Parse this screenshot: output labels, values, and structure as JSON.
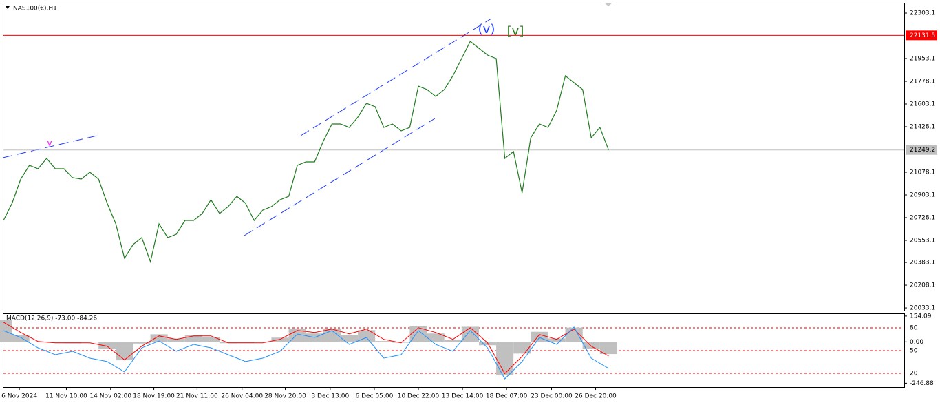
{
  "chart_data": [
    {
      "type": "line",
      "title": "NAS100(€),H1",
      "color": "#1f7a1f",
      "values": [
        20706.9,
        20839.5,
        21025.0,
        21131.1,
        21104.6,
        21184.2,
        21104.6,
        21104.6,
        21035.7,
        21025.0,
        21078.1,
        21025.0,
        20839.5,
        20680.4,
        20415.2,
        20521.3,
        20574.3,
        20388.7,
        20680.4,
        20574.3,
        20600.8,
        20706.9,
        20706.9,
        20759.9,
        20866.0,
        20759.9,
        20812.9,
        20892.5,
        20839.5,
        20706.9,
        20786.4,
        20812.9,
        20866.0,
        20892.5,
        21131.1,
        21157.6,
        21157.6,
        21316.7,
        21449.3,
        21449.3,
        21422.8,
        21502.3,
        21608.4,
        21581.9,
        21422.8,
        21449.3,
        21396.3,
        21422.8,
        21740.6,
        21714.5,
        21661.5,
        21714.5,
        21820.5,
        21953.1,
        22085.7,
        22032.6,
        21979.6,
        21953.1,
        21184.2,
        21237.1,
        20919.0,
        21343.3,
        21449.3,
        21422.8,
        21555.4,
        21820.5,
        21767.6,
        21714.5,
        21343.3,
        21422.8,
        21249.2
      ],
      "xlim": [
        0,
        104.2
      ],
      "ylim": [
        20012.2,
        22377.3
      ],
      "yticks": [
        22303.1,
        21953.1,
        21778.1,
        21603.1,
        21428.1,
        21078.1,
        20903.1,
        20728.1,
        20553.1,
        20383.1,
        20208.1,
        20033.1
      ],
      "xticks": [
        {
          "value": 1.84,
          "label": "6 Nov 2024"
        },
        {
          "value": 7.28,
          "label": "11 Nov 10:00"
        },
        {
          "value": 12.4,
          "label": "14 Nov 02:00"
        },
        {
          "value": 17.4,
          "label": "18 Nov 19:00"
        },
        {
          "value": 22.4,
          "label": "21 Nov 11:00"
        },
        {
          "value": 27.6,
          "label": "26 Nov 04:00"
        },
        {
          "value": 32.6,
          "label": "28 Nov 20:00"
        },
        {
          "value": 37.8,
          "label": "3 Dec 13:00"
        },
        {
          "value": 42.9,
          "label": "6 Dec 05:00"
        },
        {
          "value": 48.0,
          "label": "10 Dec 22:00"
        },
        {
          "value": 53.1,
          "label": "13 Dec 14:00"
        },
        {
          "value": 58.2,
          "label": "18 Dec 07:00"
        },
        {
          "value": 63.4,
          "label": "23 Dec 00:00"
        },
        {
          "value": 68.5,
          "label": "26 Dec 20:00"
        }
      ],
      "hlines": [
        {
          "value": 22131.5,
          "color": "#ff0000"
        },
        {
          "value": 21249.2,
          "color": "#c0c0c0"
        }
      ],
      "annotations": [
        {
          "text": "(v)",
          "color": "#1e3cff"
        },
        {
          "text": "[v]",
          "color": "#2e7d1e"
        },
        {
          "text": "v",
          "color": "#ff00ff"
        }
      ]
    },
    {
      "type": "macd",
      "title": "MACD(12,26,9) -73.00 -84.26",
      "xlim": [
        0,
        52.1
      ],
      "ylim": [
        -270,
        170
      ],
      "yticks": [
        154.09,
        {
          "value": 0,
          "label": "0.00"
        },
        -246.88
      ],
      "y2lim": [
        1.8,
        99.1
      ],
      "y2ticks": [
        80,
        50,
        20
      ],
      "series": [
        {
          "type": "bar",
          "color": "#c0c0c0",
          "values": [
            130,
            40,
            0,
            -5,
            -8,
            -3,
            -40,
            -110,
            -10,
            45,
            20,
            40,
            30,
            -8,
            -5,
            0,
            25,
            80,
            50,
            80,
            40,
            70,
            5,
            -5,
            95,
            50,
            10,
            90,
            -20,
            -200,
            -70,
            60,
            20,
            85,
            -40,
            -73
          ]
        },
        {
          "type": "line",
          "color": "#ff0000",
          "values": [
            117.3,
            55.9,
            2.8,
            -5.4,
            -5.4,
            -5.4,
            -25.9,
            -107.7,
            -25.9,
            35.5,
            15.0,
            35.5,
            35.5,
            -5.4,
            -5.4,
            -5.4,
            15.0,
            68.2,
            55.9,
            76.4,
            47.8,
            76.4,
            15.0,
            -5.4,
            84.6,
            55.9,
            15.0,
            84.6,
            -5.4,
            -189.5,
            -87.2,
            43.7,
            15.0,
            76.4,
            -25.9,
            -84.26
          ]
        },
        {
          "type": "line",
          "color": "#1e90ff",
          "axis": "y2",
          "values": [
            76.4,
            67.3,
            53.6,
            44.5,
            49.1,
            40,
            35.5,
            21.8,
            53.6,
            62.7,
            49.1,
            58.2,
            53.6,
            44.5,
            35.5,
            40,
            49.1,
            71.8,
            67.3,
            76.4,
            58.2,
            67.3,
            40,
            44.5,
            76.4,
            58.2,
            49.1,
            76.4,
            53.6,
            12.7,
            35.5,
            67.3,
            58.2,
            80.9,
            40,
            26.4
          ]
        }
      ]
    }
  ]
}
